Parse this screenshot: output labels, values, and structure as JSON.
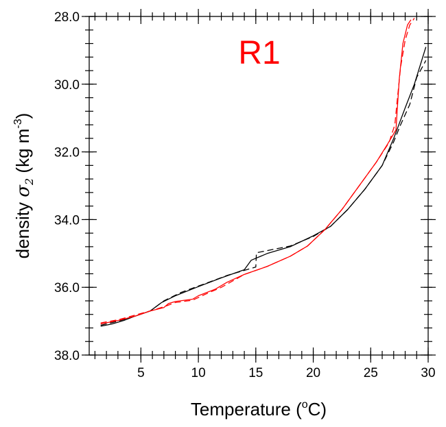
{
  "chart_data": {
    "type": "line",
    "annotation": "R1",
    "annotation_color": "#ff0000",
    "xlabel": "Temperature (",
    "xlabel_sup": "o",
    "xlabel_end": "C)",
    "ylabel": "density ",
    "ylabel_symbol": "σ",
    "ylabel_sub": "2",
    "ylabel_units": " (kg m",
    "ylabel_sup": "-3",
    "ylabel_end": ")",
    "xlim": [
      0.5,
      30
    ],
    "ylim": [
      38.0,
      28.0
    ],
    "y_inverted": true,
    "x_ticks": [
      5,
      10,
      15,
      20,
      25,
      30
    ],
    "x_tick_labels": [
      "5",
      "10",
      "15",
      "20",
      "25",
      "30"
    ],
    "x_minor_step": 1,
    "y_ticks": [
      28,
      30,
      32,
      34,
      36,
      38
    ],
    "y_tick_labels": [
      "28.0",
      "30.0",
      "32.0",
      "34.0",
      "36.0",
      "38.0"
    ],
    "y_minor_step": 0.4,
    "grid": false,
    "legend": "none",
    "series": [
      {
        "color": "#000000",
        "dash": "solid",
        "x": [
          1.5,
          2.5,
          3.5,
          4.5,
          5.8,
          6.8,
          8.0,
          10.0,
          12.0,
          14.0,
          14.6,
          16.0,
          18.0,
          20.0,
          21.5,
          23.0,
          24.5,
          26.0,
          27.0,
          28.0,
          28.8,
          29.8
        ],
        "y": [
          37.15,
          37.08,
          36.98,
          36.85,
          36.7,
          36.45,
          36.25,
          35.98,
          35.72,
          35.48,
          35.2,
          35.0,
          34.8,
          34.48,
          34.2,
          33.7,
          33.1,
          32.4,
          31.6,
          30.7,
          30.0,
          28.9
        ]
      },
      {
        "color": "#000000",
        "dash": "dashed",
        "x": [
          1.5,
          3.0,
          4.5,
          5.8,
          7.0,
          8.5,
          10.5,
          12.5,
          14.0,
          15.0,
          15.05,
          16.5,
          18.0,
          20.0,
          21.5,
          23.0,
          24.5,
          26.0,
          27.0,
          27.6,
          28.4,
          29.0,
          29.8
        ],
        "y": [
          37.12,
          37.0,
          36.85,
          36.7,
          36.4,
          36.15,
          35.9,
          35.65,
          35.5,
          35.4,
          34.98,
          34.88,
          34.78,
          34.5,
          34.2,
          33.7,
          33.1,
          32.4,
          31.7,
          31.2,
          30.6,
          29.8,
          29.3
        ]
      },
      {
        "color": "#ff0000",
        "dash": "solid",
        "x": [
          1.5,
          3.0,
          4.5,
          5.8,
          7.0,
          7.4,
          8.0,
          9.5,
          10.0,
          11.5,
          12.5,
          14.0,
          16.0,
          18.0,
          19.5,
          21.0,
          22.5,
          24.0,
          25.5,
          26.5,
          27.2,
          27.3,
          27.5,
          27.8,
          28.2,
          28.5
        ],
        "y": [
          37.08,
          36.98,
          36.85,
          36.7,
          36.6,
          36.48,
          36.42,
          36.35,
          36.25,
          36.05,
          35.85,
          35.62,
          35.38,
          35.08,
          34.78,
          34.3,
          33.7,
          33.0,
          32.3,
          31.75,
          31.35,
          30.8,
          29.8,
          28.8,
          28.25,
          28.1
        ]
      },
      {
        "color": "#ff0000",
        "dash": "dashed",
        "x": [
          1.5,
          3.0,
          4.5,
          6.0,
          7.2,
          8.0,
          9.5,
          10.5,
          12.0,
          14.0,
          16.0,
          18.0,
          19.5,
          21.0,
          22.5,
          24.0,
          25.5,
          26.6,
          27.1,
          27.3,
          27.6,
          28.0,
          28.4,
          28.8
        ],
        "y": [
          37.05,
          36.96,
          36.82,
          36.68,
          36.55,
          36.45,
          36.38,
          36.22,
          36.0,
          35.62,
          35.38,
          35.08,
          34.78,
          34.3,
          33.7,
          33.0,
          32.3,
          31.72,
          31.2,
          30.5,
          29.5,
          28.7,
          28.25,
          28.05
        ]
      }
    ]
  }
}
